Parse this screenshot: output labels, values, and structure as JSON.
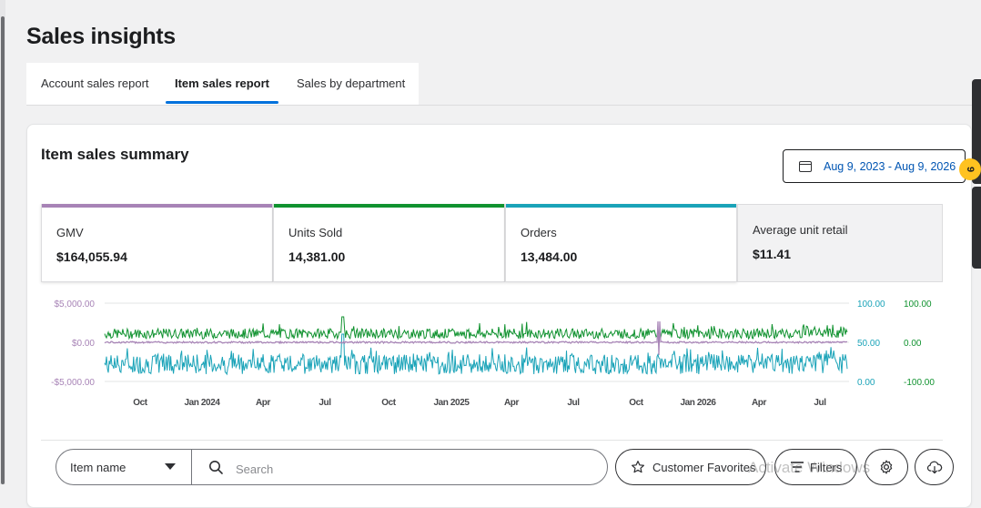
{
  "page": {
    "title": "Sales insights"
  },
  "tabs": [
    {
      "label": "Account sales report",
      "active": false
    },
    {
      "label": "Item sales report",
      "active": true
    },
    {
      "label": "Sales by department",
      "active": false
    }
  ],
  "summary": {
    "title": "Item sales summary",
    "date_range": "Aug 9, 2023 - Aug 9, 2026",
    "metrics": [
      {
        "label": "GMV",
        "value": "$164,055.94",
        "color": "#a783b6"
      },
      {
        "label": "Units Sold",
        "value": "14,381.00",
        "color": "#10922f"
      },
      {
        "label": "Orders",
        "value": "13,484.00",
        "color": "#1aa3b8"
      },
      {
        "label": "Average unit retail",
        "value": "$11.41",
        "color": ""
      }
    ]
  },
  "notification_badge": "9",
  "chart_data": {
    "type": "line",
    "x_ticks": [
      "Oct",
      "Jan 2024",
      "Apr",
      "Jul",
      "Oct",
      "Jan 2025",
      "Apr",
      "Jul",
      "Oct",
      "Jan 2026",
      "Apr",
      "Jul"
    ],
    "left_axis_ticks": [
      "$5,000.00",
      "$0.00",
      "-$5,000.00"
    ],
    "right_axis1_ticks": [
      "100.00",
      "50.00",
      "0.00"
    ],
    "right_axis2_ticks": [
      "100.00",
      "0.00",
      "-100.00"
    ],
    "series": [
      {
        "name": "GMV",
        "color": "#a783b6"
      },
      {
        "name": "Units Sold",
        "color": "#10922f"
      },
      {
        "name": "Orders",
        "color": "#1aa3b8"
      }
    ],
    "grid": true
  },
  "toolbar": {
    "select_value": "Item name",
    "search_placeholder": "Search",
    "favorites_label": "Customer Favorites",
    "filters_label": "Filters",
    "settings_icon": "gear-icon",
    "download_icon": "cloud-download-icon"
  },
  "watermark": "Activate Windows"
}
